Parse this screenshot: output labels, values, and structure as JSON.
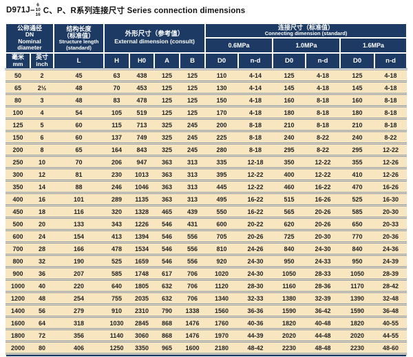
{
  "title": {
    "model": "D971J–",
    "stack": [
      "6",
      "10",
      "16"
    ],
    "rest": "C、P、R系列连接尺寸 Series connection dimensions"
  },
  "colors": {
    "header_bg": "#1c3a64",
    "row_bg": "#f8e6c1",
    "separator": "#8c9aaa",
    "header_text": "#ffffff"
  },
  "header": {
    "nominal": {
      "lines": [
        "公称通径",
        "DN",
        "Nominal",
        "diameter"
      ]
    },
    "structure": {
      "lines": [
        "结构长度",
        "（标准值）",
        "Structure length",
        "(standard)"
      ]
    },
    "external": {
      "lines": [
        "外形尺寸（参考值）",
        "External dimension (consult)"
      ]
    },
    "connecting": {
      "lines": [
        "连接尺寸（标准值）",
        "Connecting dimension (standard)"
      ]
    },
    "pressures": [
      "0.6MPa",
      "1.0MPa",
      "1.6MPa"
    ],
    "sub": {
      "mm": [
        "毫米",
        "mm"
      ],
      "inch": [
        "英寸",
        "inch"
      ],
      "l": "L",
      "h": "H",
      "h0": "H0",
      "a": "A",
      "b": "B",
      "d0": "D0",
      "nd": "n-d"
    }
  },
  "rows": [
    [
      50,
      "2",
      45,
      63,
      438,
      125,
      125,
      110,
      "4-14",
      125,
      "4-18",
      125,
      "4-18"
    ],
    [
      65,
      "2½",
      48,
      70,
      453,
      125,
      125,
      130,
      "4-14",
      145,
      "4-18",
      145,
      "4-18"
    ],
    [
      80,
      "3",
      48,
      83,
      478,
      125,
      125,
      150,
      "4-18",
      160,
      "8-18",
      160,
      "8-18"
    ],
    [
      100,
      "4",
      54,
      105,
      519,
      125,
      125,
      170,
      "4-18",
      180,
      "8-18",
      180,
      "8-18"
    ],
    [
      125,
      "5",
      60,
      115,
      713,
      325,
      245,
      200,
      "8-18",
      210,
      "8-18",
      210,
      "8-18"
    ],
    [
      150,
      "6",
      60,
      137,
      749,
      325,
      245,
      225,
      "8-18",
      240,
      "8-22",
      240,
      "8-22"
    ],
    [
      200,
      "8",
      65,
      164,
      843,
      325,
      245,
      280,
      "8-18",
      295,
      "8-22",
      295,
      "12-22"
    ],
    [
      250,
      "10",
      70,
      206,
      947,
      363,
      313,
      335,
      "12-18",
      350,
      "12-22",
      355,
      "12-26"
    ],
    [
      300,
      "12",
      81,
      230,
      1013,
      363,
      313,
      395,
      "12-22",
      400,
      "12-22",
      410,
      "12-26"
    ],
    [
      350,
      "14",
      88,
      246,
      1046,
      363,
      313,
      445,
      "12-22",
      460,
      "16-22",
      470,
      "16-26"
    ],
    [
      400,
      "16",
      101,
      289,
      1135,
      363,
      313,
      495,
      "16-22",
      515,
      "16-26",
      525,
      "16-30"
    ],
    [
      450,
      "18",
      116,
      320,
      1328,
      465,
      439,
      550,
      "16-22",
      565,
      "20-26",
      585,
      "20-30"
    ],
    [
      500,
      "20",
      133,
      343,
      1226,
      546,
      431,
      600,
      "20-22",
      620,
      "20-26",
      650,
      "20-33"
    ],
    [
      600,
      "24",
      154,
      413,
      1394,
      546,
      556,
      705,
      "20-26",
      725,
      "20-30",
      770,
      "20-36"
    ],
    [
      700,
      "28",
      166,
      478,
      1534,
      546,
      556,
      810,
      "24-26",
      840,
      "24-30",
      840,
      "24-36"
    ],
    [
      800,
      "32",
      190,
      525,
      1659,
      546,
      556,
      920,
      "24-30",
      950,
      "24-33",
      950,
      "24-39"
    ],
    [
      900,
      "36",
      207,
      585,
      1748,
      617,
      706,
      1020,
      "24-30",
      1050,
      "28-33",
      1050,
      "28-39"
    ],
    [
      1000,
      "40",
      220,
      640,
      1805,
      632,
      706,
      1120,
      "28-30",
      1160,
      "28-36",
      1170,
      "28-42"
    ],
    [
      1200,
      "48",
      254,
      755,
      2035,
      632,
      706,
      1340,
      "32-33",
      1380,
      "32-39",
      1390,
      "32-48"
    ],
    [
      1400,
      "56",
      279,
      910,
      2310,
      790,
      1338,
      1560,
      "36-36",
      1590,
      "36-42",
      1590,
      "36-48"
    ],
    [
      1600,
      "64",
      318,
      1030,
      2845,
      868,
      1476,
      1760,
      "40-36",
      1820,
      "40-48",
      1820,
      "40-55"
    ],
    [
      1800,
      "72",
      356,
      1140,
      3060,
      868,
      1476,
      1970,
      "44-39",
      2020,
      "44-48",
      2020,
      "44-55"
    ],
    [
      2000,
      "80",
      406,
      1250,
      3350,
      965,
      1600,
      2180,
      "48-42",
      2230,
      "48-48",
      2230,
      "48-60"
    ]
  ]
}
